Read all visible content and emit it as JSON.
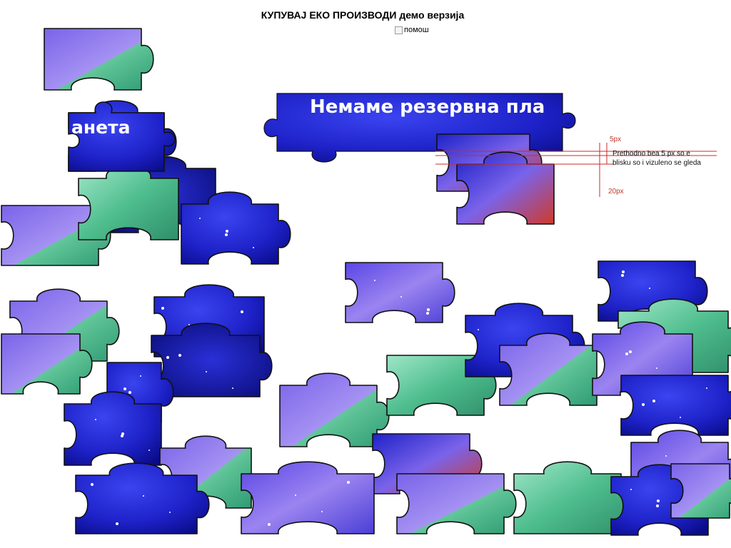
{
  "game": {
    "title": "КУПУВАЈ ЕКО ПРОИЗВОДИ демо верзија",
    "help_label": "помош"
  },
  "banner": {
    "text": "Немаме резервна пла",
    "fragment_text": "анета"
  },
  "annotation": {
    "top_label": "5px",
    "note_line1": "Prethodno bea 5 px so e",
    "note_line2": "blisku so i vizuleno se gleda",
    "bottom_label": "20px"
  },
  "colors": {
    "space_blue": "#1e22c8",
    "space_dark": "#0a0c88",
    "nebula_purple": "#7a63ea",
    "planet_green": "#3cc88e",
    "outline": "#111111",
    "guide_red": "#cc2a2a"
  },
  "pieces": [
    {
      "id": 1,
      "theme": "nebula-planet"
    },
    {
      "id": 2,
      "theme": "banner-text"
    },
    {
      "id": 3,
      "theme": "space-dark"
    },
    {
      "id": 4,
      "theme": "nebula-planet"
    },
    {
      "id": 5,
      "theme": "space-blue"
    },
    {
      "id": 6,
      "theme": "planet-green"
    },
    {
      "id": 7,
      "theme": "character"
    },
    {
      "id": 8,
      "theme": "character"
    },
    {
      "id": 9,
      "theme": "nebula"
    },
    {
      "id": 10,
      "theme": "nebula-planet"
    },
    {
      "id": 11,
      "theme": "space-blue"
    },
    {
      "id": 12,
      "theme": "nebula-planet"
    },
    {
      "id": 13,
      "theme": "space-dark"
    },
    {
      "id": 14,
      "theme": "space-blue"
    },
    {
      "id": 15,
      "theme": "space-blue"
    },
    {
      "id": 16,
      "theme": "nebula-planet"
    },
    {
      "id": 17,
      "theme": "planet-green"
    },
    {
      "id": 18,
      "theme": "space-blue"
    },
    {
      "id": 19,
      "theme": "nebula-planet"
    },
    {
      "id": 20,
      "theme": "space-blue"
    },
    {
      "id": 21,
      "theme": "planet-green"
    },
    {
      "id": 22,
      "theme": "nebula"
    },
    {
      "id": 23,
      "theme": "space-blue"
    },
    {
      "id": 24,
      "theme": "nebula"
    },
    {
      "id": 25,
      "theme": "nebula-planet"
    },
    {
      "id": 26,
      "theme": "character"
    },
    {
      "id": 27,
      "theme": "space-blue"
    },
    {
      "id": 28,
      "theme": "nebula"
    },
    {
      "id": 29,
      "theme": "nebula-planet"
    },
    {
      "id": 30,
      "theme": "planet-green"
    },
    {
      "id": 31,
      "theme": "space-blue"
    },
    {
      "id": 32,
      "theme": "nebula-planet"
    }
  ]
}
